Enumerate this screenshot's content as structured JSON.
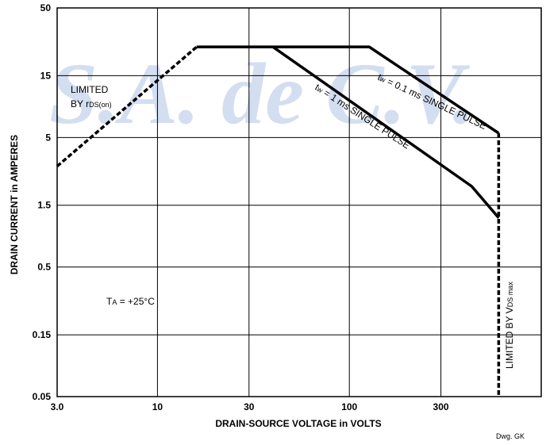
{
  "chart_data": {
    "type": "line",
    "xlabel": "DRAIN-SOURCE VOLTAGE in VOLTS",
    "ylabel": "DRAIN CURRENT in AMPERES",
    "xscale": "log",
    "yscale": "log",
    "xlim": [
      3,
      1000
    ],
    "ylim": [
      0.05,
      50
    ],
    "xticks": [
      {
        "value": 3,
        "label": "3.0"
      },
      10,
      30,
      100,
      300
    ],
    "yticks": [
      0.05,
      0.15,
      0.5,
      1.5,
      5,
      15,
      50
    ],
    "grid": true,
    "series": [
      {
        "color": "#000000",
        "dashed": true,
        "x": [
          3,
          16
        ],
        "values": [
          3,
          25
        ]
      },
      {
        "color": "#000000",
        "dashed": false,
        "x": [
          16,
          127,
          600
        ],
        "values": [
          25,
          25,
          5.4
        ]
      },
      {
        "color": "#000000",
        "dashed": false,
        "x": [
          40,
          434,
          600
        ],
        "values": [
          25,
          2.1,
          1.2
        ]
      },
      {
        "color": "#000000",
        "dashed": true,
        "x": [
          600,
          600
        ],
        "values": [
          5.4,
          0.05
        ]
      }
    ],
    "annotations": {
      "limited": "LIMITED",
      "by_rds": [
        "BY r",
        "DS(on)"
      ],
      "ta": [
        "T",
        "A",
        " = +25°C"
      ],
      "tw01": [
        "t",
        "w",
        " = 0.1 ms SINGLE PULSE"
      ],
      "tw1": [
        "t",
        "w",
        " = 1 ms SINGLE PULSE"
      ],
      "vds": [
        "LIMITED BY V",
        "DS max"
      ]
    },
    "watermark": "S.A. de C.V.",
    "drawing_id": "Dwg. GK"
  }
}
